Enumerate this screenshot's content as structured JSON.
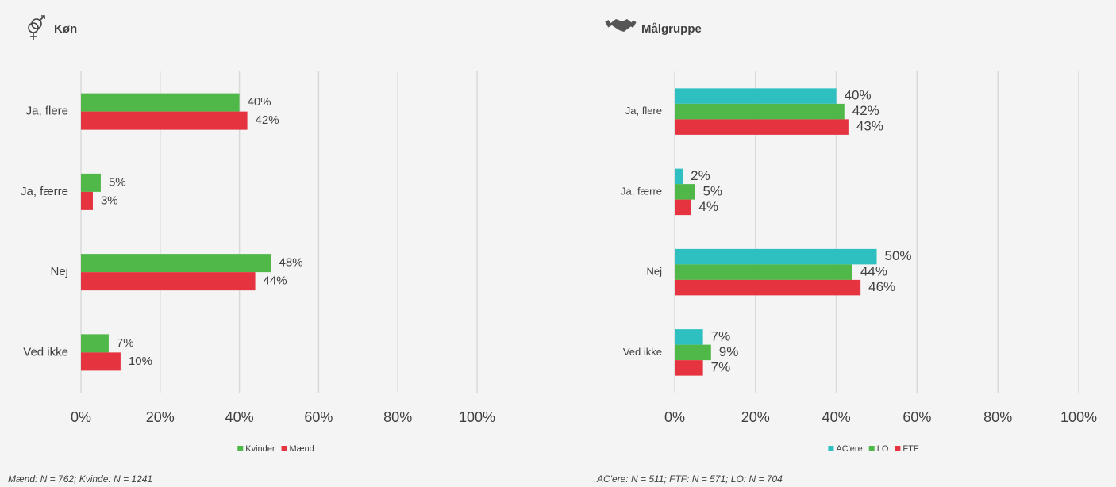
{
  "chart_data": [
    {
      "type": "bar",
      "orientation": "horizontal",
      "title": "Køn",
      "categories": [
        "Ja, flere",
        "Ja, færre",
        "Nej",
        "Ved ikke"
      ],
      "series": [
        {
          "name": "Kvinder",
          "color": "#4fb848",
          "values": [
            40,
            5,
            48,
            7
          ],
          "value_labels": [
            "40%",
            "5%",
            "48%",
            "7%"
          ]
        },
        {
          "name": "Mænd",
          "color": "#e5333f",
          "values": [
            42,
            3,
            44,
            10
          ],
          "value_labels": [
            "42%",
            "3%",
            "44%",
            "10%"
          ]
        }
      ],
      "xlim": [
        0,
        100
      ],
      "xticks": [
        {
          "value": 0,
          "label": "0%"
        },
        {
          "value": 20,
          "label": "20%"
        },
        {
          "value": 40,
          "label": "40%"
        },
        {
          "value": 60,
          "label": "60%"
        },
        {
          "value": 80,
          "label": "80%"
        },
        {
          "value": 100,
          "label": "100%"
        }
      ],
      "grid": true,
      "legend": "bottom",
      "footnote": "Mænd: N = 762; Kvinde: N = 1241"
    },
    {
      "type": "bar",
      "orientation": "horizontal",
      "title": "Målgruppe",
      "categories": [
        "Ja, flere",
        "Ja, færre",
        "Nej",
        "Ved ikke"
      ],
      "series": [
        {
          "name": "AC'ere",
          "color": "#2ebfc0",
          "values": [
            40,
            2,
            50,
            7
          ],
          "value_labels": [
            "40%",
            "2%",
            "50%",
            "7%"
          ]
        },
        {
          "name": "LO",
          "color": "#4fb848",
          "values": [
            42,
            5,
            44,
            9
          ],
          "value_labels": [
            "42%",
            "5%",
            "44%",
            "9%"
          ]
        },
        {
          "name": "FTF",
          "color": "#e5333f",
          "values": [
            43,
            4,
            46,
            7
          ],
          "value_labels": [
            "43%",
            "4%",
            "46%",
            "7%"
          ]
        }
      ],
      "xlim": [
        0,
        100
      ],
      "xticks": [
        {
          "value": 0,
          "label": "0%"
        },
        {
          "value": 20,
          "label": "20%"
        },
        {
          "value": 40,
          "label": "40%"
        },
        {
          "value": 60,
          "label": "60%"
        },
        {
          "value": 80,
          "label": "80%"
        },
        {
          "value": 100,
          "label": "100%"
        }
      ],
      "grid": true,
      "legend": "bottom",
      "footnote": "AC'ere: N = 511; FTF: N = 571; LO: N = 704"
    }
  ]
}
